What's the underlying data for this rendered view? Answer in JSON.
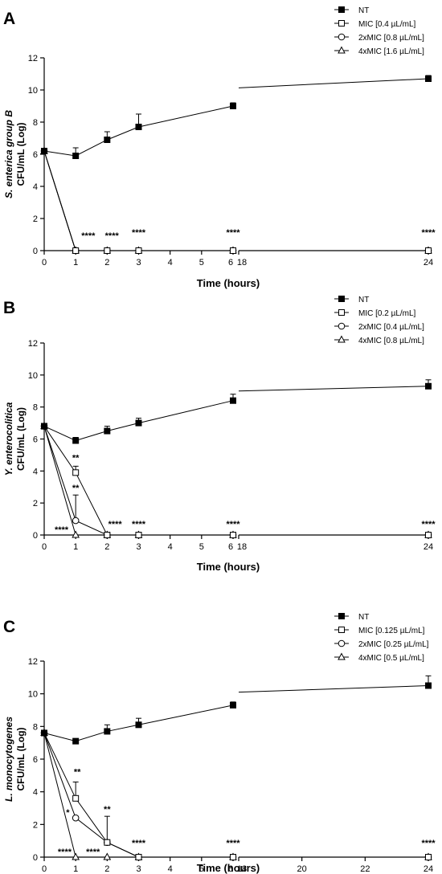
{
  "chart_data": [
    {
      "type": "line",
      "panel": "A",
      "ylabel": [
        "S. enterica group B",
        "CFU/mL (Log)"
      ],
      "xlabel": "Time (hours)",
      "ylim": [
        0,
        12
      ],
      "yticks": [
        0,
        2,
        4,
        6,
        8,
        10,
        12
      ],
      "xticks": [
        "0",
        "1",
        "2",
        "3",
        "4",
        "5",
        "6",
        "18",
        "24"
      ],
      "xbreak": "between 6 and 18",
      "legend_position": "top-right",
      "series": [
        {
          "name": "NT",
          "marker": "filled-square",
          "x": [
            0,
            1,
            2,
            3,
            6,
            24
          ],
          "y": [
            6.2,
            5.9,
            6.9,
            7.7,
            9.0,
            10.7
          ],
          "err": [
            0.1,
            0.5,
            0.5,
            0.8,
            0.2,
            0.2
          ]
        },
        {
          "name": "MIC [0.4 µL/mL]",
          "marker": "open-square",
          "x": [
            0,
            1,
            2,
            3,
            6,
            24
          ],
          "y": [
            6.2,
            0,
            0,
            0,
            0,
            0
          ],
          "err": [
            0,
            0,
            0,
            0,
            0,
            0
          ]
        },
        {
          "name": "2xMIC [0.8 µL/mL]",
          "marker": "open-circle",
          "x": [
            0,
            1,
            2,
            3,
            6,
            24
          ],
          "y": [
            6.2,
            0,
            0,
            0,
            0,
            0
          ],
          "err": [
            0,
            0,
            0,
            0,
            0,
            0
          ]
        },
        {
          "name": "4xMIC [1.6 µL/mL]",
          "marker": "open-triangle",
          "x": [
            0,
            1,
            2,
            3,
            6,
            24
          ],
          "y": [
            6.2,
            0,
            0,
            0,
            0,
            0
          ],
          "err": [
            0,
            0,
            0,
            0,
            0,
            0
          ]
        }
      ],
      "annotations": [
        {
          "text": "****",
          "x": 1.4,
          "y": 0.6
        },
        {
          "text": "****",
          "x": 2.15,
          "y": 0.6
        },
        {
          "text": "****",
          "x": 3.0,
          "y": 0.8
        },
        {
          "text": "****",
          "x": 6.0,
          "y": 0.8
        },
        {
          "text": "****",
          "x": 24,
          "y": 0.8
        }
      ]
    },
    {
      "type": "line",
      "panel": "B",
      "ylabel": [
        "Y. enterocolitica",
        "CFU/mL (Log)"
      ],
      "xlabel": "Time (hours)",
      "ylim": [
        0,
        12
      ],
      "yticks": [
        0,
        2,
        4,
        6,
        8,
        10,
        12
      ],
      "xticks": [
        "0",
        "1",
        "2",
        "3",
        "4",
        "5",
        "6",
        "18",
        "24"
      ],
      "xbreak": "between 6 and 18",
      "legend_position": "top-right",
      "series": [
        {
          "name": "NT",
          "marker": "filled-square",
          "x": [
            0,
            1,
            2,
            3,
            6,
            24
          ],
          "y": [
            6.8,
            5.9,
            6.5,
            7.0,
            8.4,
            9.3
          ],
          "err": [
            0.1,
            0.2,
            0.3,
            0.3,
            0.4,
            0.4
          ]
        },
        {
          "name": "MIC [0.2 µL/mL]",
          "marker": "open-square",
          "x": [
            0,
            1,
            2,
            3,
            6,
            24
          ],
          "y": [
            6.8,
            3.9,
            0,
            0,
            0,
            0
          ],
          "err": [
            0,
            0.4,
            0,
            0,
            0,
            0
          ]
        },
        {
          "name": "2xMIC [0.4 µL/mL]",
          "marker": "open-circle",
          "x": [
            0,
            1,
            2,
            3,
            6,
            24
          ],
          "y": [
            6.8,
            0.9,
            0,
            0,
            0,
            0
          ],
          "err": [
            0,
            1.6,
            0,
            0,
            0,
            0
          ]
        },
        {
          "name": "4xMIC [0.8 µL/mL]",
          "marker": "open-triangle",
          "x": [
            0,
            1,
            2,
            3,
            6,
            24
          ],
          "y": [
            6.8,
            0,
            0,
            0,
            0,
            0
          ],
          "err": [
            0,
            0,
            0,
            0,
            0,
            0
          ]
        }
      ],
      "annotations": [
        {
          "text": "**",
          "x": 1.0,
          "y": 4.5
        },
        {
          "text": "**",
          "x": 1.0,
          "y": 2.6
        },
        {
          "text": "****",
          "x": 0.55,
          "y": 0.0
        },
        {
          "text": "****",
          "x": 2.25,
          "y": 0.35
        },
        {
          "text": "****",
          "x": 3.0,
          "y": 0.35
        },
        {
          "text": "****",
          "x": 6.0,
          "y": 0.35
        },
        {
          "text": "****",
          "x": 24,
          "y": 0.35
        }
      ]
    },
    {
      "type": "line",
      "panel": "C",
      "ylabel": [
        "L. monocytogenes",
        "CFU/mL (Log)"
      ],
      "xlabel": "Time (hours)",
      "ylim": [
        0,
        12
      ],
      "yticks": [
        0,
        2,
        4,
        6,
        8,
        10,
        12
      ],
      "xticks": [
        "0",
        "1",
        "2",
        "3",
        "4",
        "5",
        "6",
        "18",
        "20",
        "22",
        "24"
      ],
      "xbreak": "between 6 and 18",
      "legend_position": "top-right",
      "series": [
        {
          "name": "NT",
          "marker": "filled-square",
          "x": [
            0,
            1,
            2,
            3,
            6,
            24
          ],
          "y": [
            7.6,
            7.1,
            7.7,
            8.1,
            9.3,
            10.5
          ],
          "err": [
            0.1,
            0.1,
            0.4,
            0.4,
            0.2,
            0.6
          ]
        },
        {
          "name": "MIC [0.125 µL/mL]",
          "marker": "open-square",
          "x": [
            0,
            1,
            2,
            3,
            6,
            24
          ],
          "y": [
            7.6,
            3.6,
            0.9,
            0,
            0,
            0
          ],
          "err": [
            0,
            1.0,
            1.6,
            0,
            0,
            0
          ]
        },
        {
          "name": "2xMIC [0.25 µL/mL]",
          "marker": "open-circle",
          "x": [
            0,
            1,
            2,
            3,
            6,
            24
          ],
          "y": [
            7.6,
            2.4,
            0.9,
            0,
            0,
            0
          ],
          "err": [
            0,
            0,
            0,
            0,
            0,
            0
          ]
        },
        {
          "name": "4xMIC [0.5 µL/mL]",
          "marker": "open-triangle",
          "x": [
            0,
            1,
            2,
            3,
            6,
            24
          ],
          "y": [
            7.6,
            0,
            0,
            0,
            0,
            0
          ],
          "err": [
            0,
            0,
            0,
            0,
            0,
            0
          ]
        }
      ],
      "annotations": [
        {
          "text": "**",
          "x": 1.05,
          "y": 4.9
        },
        {
          "text": "*",
          "x": 0.75,
          "y": 2.4
        },
        {
          "text": "**",
          "x": 2.0,
          "y": 2.6
        },
        {
          "text": "****",
          "x": 0.65,
          "y": 0.0
        },
        {
          "text": "****",
          "x": 1.55,
          "y": 0.0
        },
        {
          "text": "****",
          "x": 3.0,
          "y": 0.55
        },
        {
          "text": "****",
          "x": 6.0,
          "y": 0.55
        },
        {
          "text": "****",
          "x": 24,
          "y": 0.55
        }
      ]
    }
  ]
}
